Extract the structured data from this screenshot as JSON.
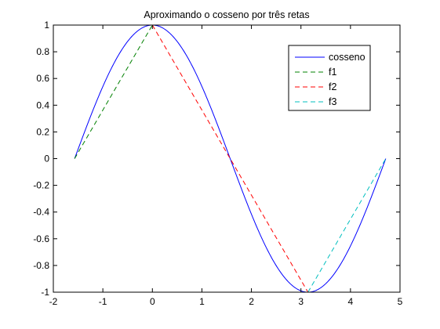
{
  "chart_data": {
    "type": "line",
    "title": "Aproximando o cosseno por três retas",
    "xlabel": "",
    "ylabel": "",
    "xlim": [
      -2,
      5
    ],
    "ylim": [
      -1,
      1
    ],
    "xticks": [
      -2,
      -1,
      0,
      1,
      2,
      3,
      4,
      5
    ],
    "yticks": [
      1,
      0.8,
      0.6,
      0.4,
      0.2,
      0,
      -0.2,
      -0.4,
      -0.6,
      -0.8,
      -1
    ],
    "xtick_labels": [
      "-2",
      "-1",
      "0",
      "1",
      "2",
      "3",
      "4",
      "5"
    ],
    "ytick_labels": [
      "1",
      "0.8",
      "0.6",
      "0.4",
      "0.2",
      "0",
      "-0.2",
      "-0.4",
      "-0.6",
      "-0.8",
      "-1"
    ],
    "grid": false,
    "legend_position": "top-right",
    "series": [
      {
        "name": "cosseno",
        "function": "cos(x)",
        "x_range": [
          -1.5708,
          4.7124
        ],
        "style": "solid",
        "color": "#0000ff"
      },
      {
        "name": "f1",
        "points": [
          [
            -1.5708,
            0
          ],
          [
            0,
            1
          ]
        ],
        "style": "dashed",
        "color": "#008000"
      },
      {
        "name": "f2",
        "points": [
          [
            0,
            1
          ],
          [
            3.1416,
            -1
          ]
        ],
        "style": "dashed",
        "color": "#ff0000"
      },
      {
        "name": "f3",
        "points": [
          [
            3.1416,
            -1
          ],
          [
            4.7124,
            0
          ]
        ],
        "style": "dashed",
        "color": "#00bfbf"
      }
    ]
  }
}
